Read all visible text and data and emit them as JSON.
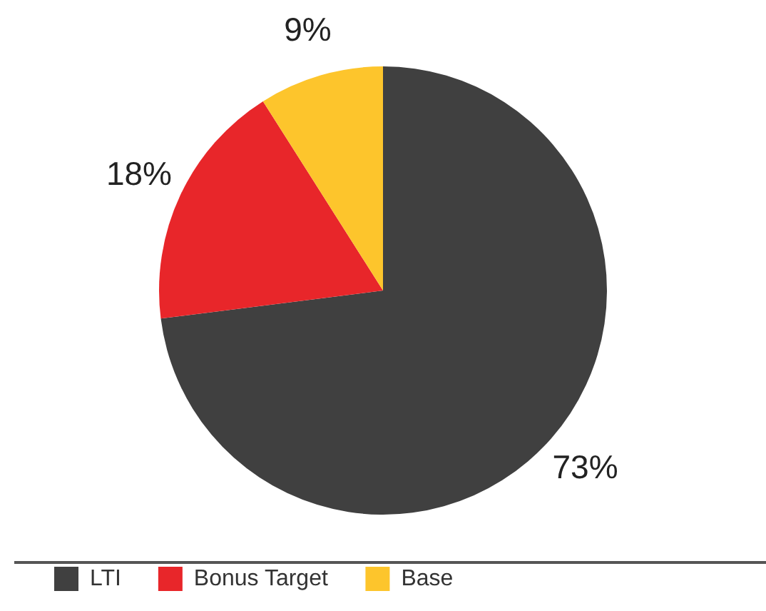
{
  "chart_data": {
    "type": "pie",
    "categories": [
      "LTI",
      "Bonus Target",
      "Base"
    ],
    "values": [
      73,
      18,
      9
    ],
    "colors": [
      "#404040",
      "#e8262a",
      "#fdc52c"
    ],
    "value_labels": [
      "73%",
      "18%",
      "9%"
    ],
    "legend": "bottom left"
  }
}
